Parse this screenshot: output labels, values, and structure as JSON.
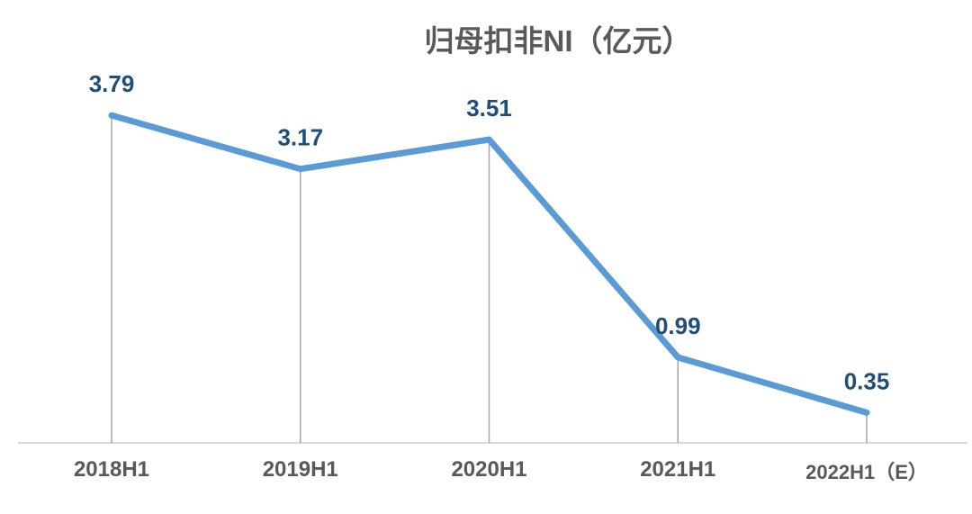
{
  "chart_data": {
    "type": "line",
    "title": "归母扣非NI（亿元）",
    "categories": [
      "2018H1",
      "2019H1",
      "2020H1",
      "2021H1",
      "2022H1（E）"
    ],
    "values": [
      3.79,
      3.17,
      3.51,
      0.99,
      0.35
    ],
    "point_labels": [
      "3.79",
      "3.17",
      "3.51",
      "0.99",
      "0.35"
    ],
    "xlabel": "",
    "ylabel": "",
    "ylim": [
      0,
      5
    ],
    "legend": "none",
    "grid": "vertical-drop-lines",
    "data_labels_position": "above",
    "colors": {
      "line": "#5B9BD5",
      "data_label": "#1F4E79",
      "axis_label": "#595959",
      "title": "#595959",
      "axis_line": "#D9D9D9",
      "drop_line": "#A6A6A6"
    }
  }
}
